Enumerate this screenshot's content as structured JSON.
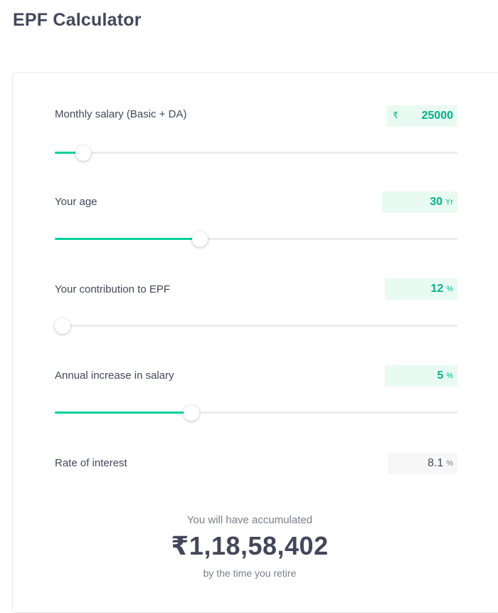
{
  "page_title": "EPF Calculator",
  "fields": {
    "salary": {
      "label": "Monthly salary (Basic + DA)",
      "prefix": "₹",
      "value": "25000",
      "slider_fraction": 0.07
    },
    "age": {
      "label": "Your age",
      "value": "30",
      "suffix": "Yr",
      "slider_fraction": 0.36
    },
    "contribution": {
      "label": "Your contribution to EPF",
      "value": "12",
      "suffix": "%",
      "slider_fraction": 0.0
    },
    "increase": {
      "label": "Annual increase in salary",
      "value": "5",
      "suffix": "%",
      "slider_fraction": 0.34
    },
    "interest": {
      "label": "Rate of interest",
      "value": "8.1",
      "suffix": "%"
    }
  },
  "result": {
    "label": "You will have accumulated",
    "amount": "₹1,18,58,402",
    "sublabel": "by the time you retire"
  },
  "colors": {
    "accent": "#00d09c",
    "accent_text": "#00b386",
    "input_bg": "#e9faf3"
  }
}
